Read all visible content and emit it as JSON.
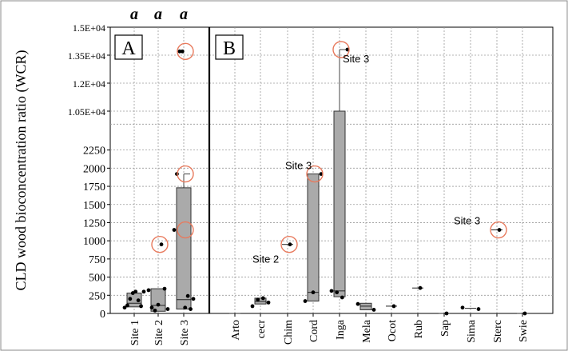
{
  "chart_data": {
    "type": "box",
    "ylabel": "CLD wood bioconcentration ratio (WCR)",
    "y_ticks": [
      "0",
      "250",
      "500",
      "750",
      "1000",
      "1250",
      "1500",
      "1750",
      "2000",
      "2250",
      "1.05E+04",
      "1.2E+04",
      "1.35E+04",
      "1.5E+04"
    ],
    "y_tick_values": [
      0,
      250,
      500,
      750,
      1000,
      1250,
      1500,
      1750,
      2000,
      2250,
      10500,
      12000,
      13500,
      15000
    ],
    "y_axis_break": {
      "lower_max": 2400,
      "upper_min": 9000
    },
    "panels": [
      {
        "label": "A",
        "significance_letters": [
          "a",
          "a",
          "a"
        ],
        "categories": [
          "Site 1",
          "Site 2",
          "Site 3"
        ],
        "boxes": [
          {
            "category": "Site 1",
            "q1": 90,
            "median": 140,
            "q3": 280,
            "whisker_low": null,
            "whisker_high": null,
            "points": [
              80,
              110,
              200,
              280,
              300,
              180,
              100,
              300
            ]
          },
          {
            "category": "Site 2",
            "q1": 30,
            "median": 110,
            "q3": 340,
            "whisker_low": null,
            "whisker_high": null,
            "points": [
              320,
              80,
              40,
              120,
              950,
              340,
              60
            ]
          },
          {
            "category": "Site 3",
            "q1": 60,
            "median": 190,
            "q3": 1730,
            "whisker_low": null,
            "whisker_high": 1920,
            "points": [
              1150,
              1920,
              13700,
              13700,
              80,
              240,
              60,
              200
            ]
          }
        ],
        "circled_points": [
          {
            "category": "Site 2",
            "value": 950
          },
          {
            "category": "Site 3",
            "value": 1150
          },
          {
            "category": "Site 3",
            "value": 1920
          },
          {
            "category": "Site 3",
            "value": 13700
          }
        ]
      },
      {
        "label": "B",
        "categories": [
          "Arto",
          "cecr",
          "Chim",
          "Cord",
          "Inga",
          "Mela",
          "Ocot",
          "Rub",
          "Sap",
          "Sima",
          "Sterc",
          "Swie"
        ],
        "boxes": [
          {
            "category": "Arto",
            "q1": null,
            "median": null,
            "q3": null,
            "median_only": 0,
            "points": []
          },
          {
            "category": "cecr",
            "q1": 130,
            "median": 165,
            "q3": 210,
            "whisker_low": null,
            "whisker_high": null,
            "points": [
              100,
              190,
              210,
              150
            ]
          },
          {
            "category": "Chim",
            "q1": null,
            "median": 950,
            "q3": null,
            "points": [
              950
            ]
          },
          {
            "category": "Cord",
            "q1": 170,
            "median": 290,
            "q3": 1920,
            "whisker_low": null,
            "whisker_high": null,
            "points": [
              170,
              290,
              1920
            ]
          },
          {
            "category": "Inga",
            "q1": 230,
            "median": 310,
            "q3": 10500,
            "whisker_low": null,
            "whisker_high": 13800,
            "points": [
              310,
              290,
              220,
              13800
            ]
          },
          {
            "category": "Mela",
            "q1": 50,
            "median": 100,
            "q3": 140,
            "whisker_low": null,
            "whisker_high": null,
            "points": [
              130,
              50
            ]
          },
          {
            "category": "Ocot",
            "q1": null,
            "median": 100,
            "q3": null,
            "points": [
              100
            ]
          },
          {
            "category": "Rub",
            "q1": null,
            "median": 350,
            "q3": null,
            "points": [
              350
            ]
          },
          {
            "category": "Sap",
            "q1": null,
            "median": 0,
            "q3": null,
            "points": [
              0
            ]
          },
          {
            "category": "Sima",
            "q1": null,
            "median": 70,
            "q3": null,
            "points": [
              80,
              60
            ]
          },
          {
            "category": "Sterc",
            "q1": null,
            "median": 1150,
            "q3": null,
            "points": [
              1150
            ]
          },
          {
            "category": "Swie",
            "q1": null,
            "median": 0,
            "q3": null,
            "points": [
              0
            ]
          }
        ],
        "annotations": [
          {
            "text": "Site 2",
            "category": "Chim",
            "value": 950
          },
          {
            "text": "Site 3",
            "category": "Cord",
            "value": 1920
          },
          {
            "text": "Site 3",
            "category": "Inga",
            "value": 13800
          },
          {
            "text": "Site 3",
            "category": "Sterc",
            "value": 1150
          }
        ],
        "circled_points": [
          {
            "category": "Chim",
            "value": 950
          },
          {
            "category": "Cord",
            "value": 1920
          },
          {
            "category": "Inga",
            "value": 13800
          },
          {
            "category": "Sterc",
            "value": 1150
          }
        ]
      }
    ],
    "grid": true,
    "colors": {
      "box": "#aaaaaa",
      "circle": "#e87a5d",
      "grid": "#9a9a9a",
      "point": "#000000"
    }
  }
}
